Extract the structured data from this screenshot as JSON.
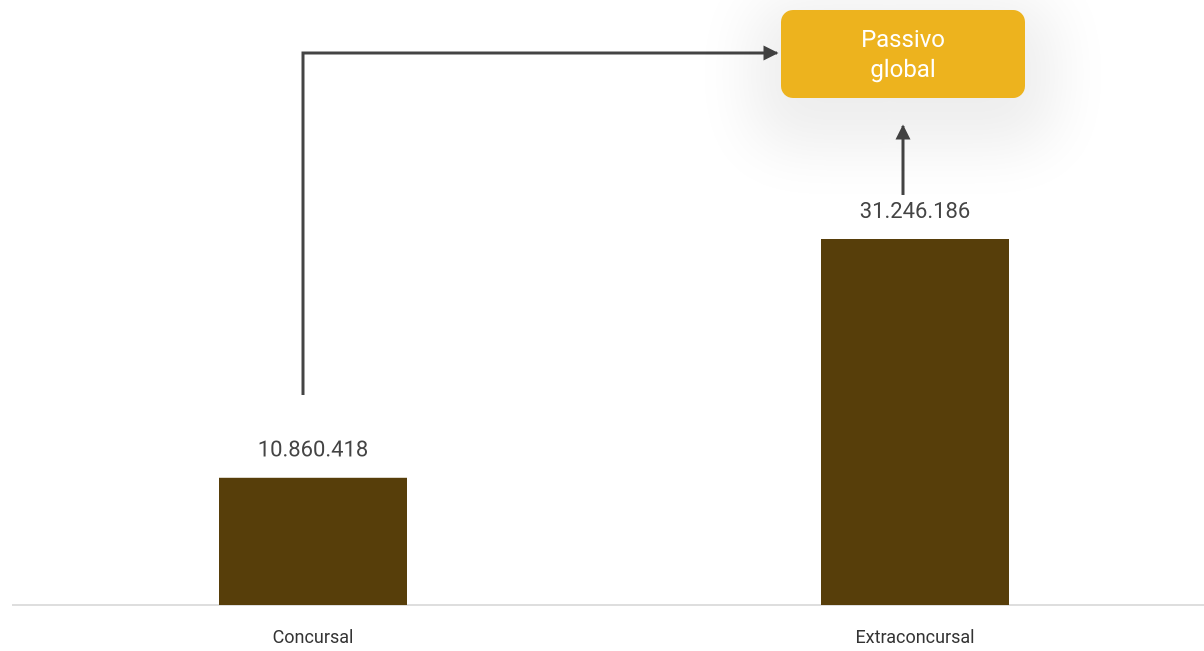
{
  "chart_data": {
    "type": "bar",
    "categories": [
      "Concursal",
      "Extraconcursal"
    ],
    "values": [
      10860418,
      31246186
    ],
    "value_labels": [
      "10.860.418",
      "31.246.186"
    ],
    "color": "#573e0a",
    "annotation": "Passivo global"
  }
}
